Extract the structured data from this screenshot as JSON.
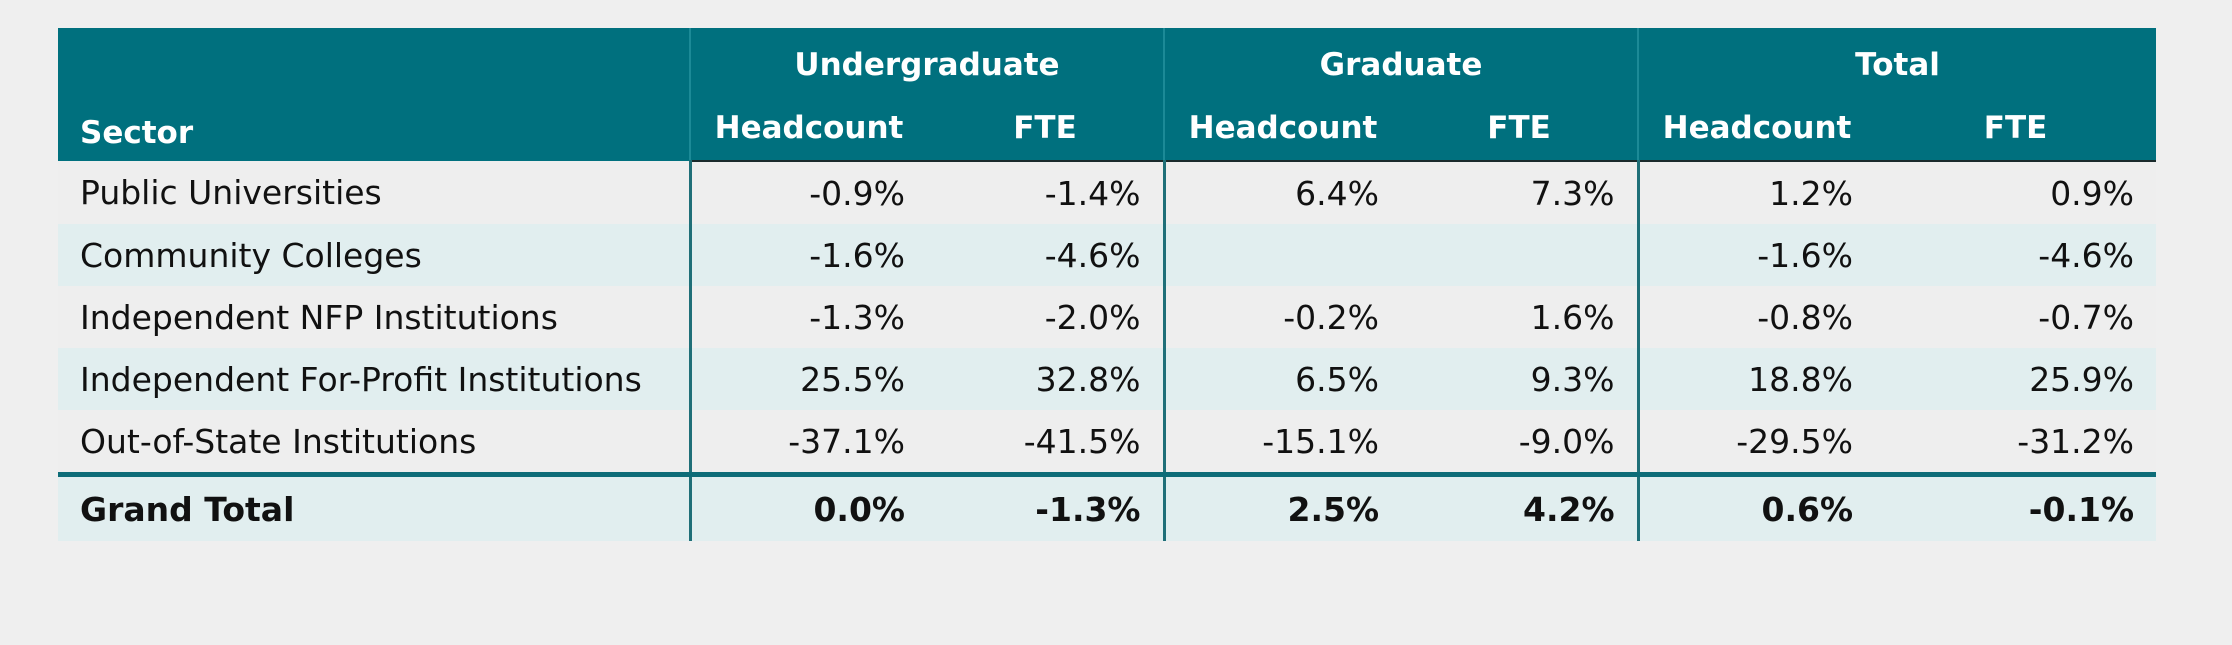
{
  "table": {
    "group_headers": [
      "Undergraduate",
      "Graduate",
      "Total"
    ],
    "column_headers": [
      "Sector",
      "Headcount",
      "FTE",
      "Headcount",
      "FTE",
      "Headcount",
      "FTE"
    ],
    "rows": [
      {
        "sector": "Public Universities",
        "values": [
          "-0.9%",
          "-1.4%",
          "6.4%",
          "7.3%",
          "1.2%",
          "0.9%"
        ]
      },
      {
        "sector": "Community Colleges",
        "values": [
          "-1.6%",
          "-4.6%",
          "",
          "",
          "-1.6%",
          "-4.6%"
        ]
      },
      {
        "sector": "Independent NFP Institutions",
        "values": [
          "-1.3%",
          "-2.0%",
          "-0.2%",
          "1.6%",
          "-0.8%",
          "-0.7%"
        ]
      },
      {
        "sector": "Independent For-Profit Institutions",
        "values": [
          "25.5%",
          "32.8%",
          "6.5%",
          "9.3%",
          "18.8%",
          "25.9%"
        ]
      },
      {
        "sector": "Out-of-State Institutions",
        "values": [
          "-37.1%",
          "-41.5%",
          "-15.1%",
          "-9.0%",
          "-29.5%",
          "-31.2%"
        ]
      }
    ],
    "total": {
      "sector": "Grand Total",
      "values": [
        "0.0%",
        "-1.3%",
        "2.5%",
        "4.2%",
        "0.6%",
        "-0.1%"
      ]
    }
  },
  "colors": {
    "header_bg": "#00707e",
    "header_text": "#ffffff",
    "row_alt_bg": "#e1eeef",
    "row_bg": "#eeeeee",
    "divider": "#0d6c78"
  }
}
